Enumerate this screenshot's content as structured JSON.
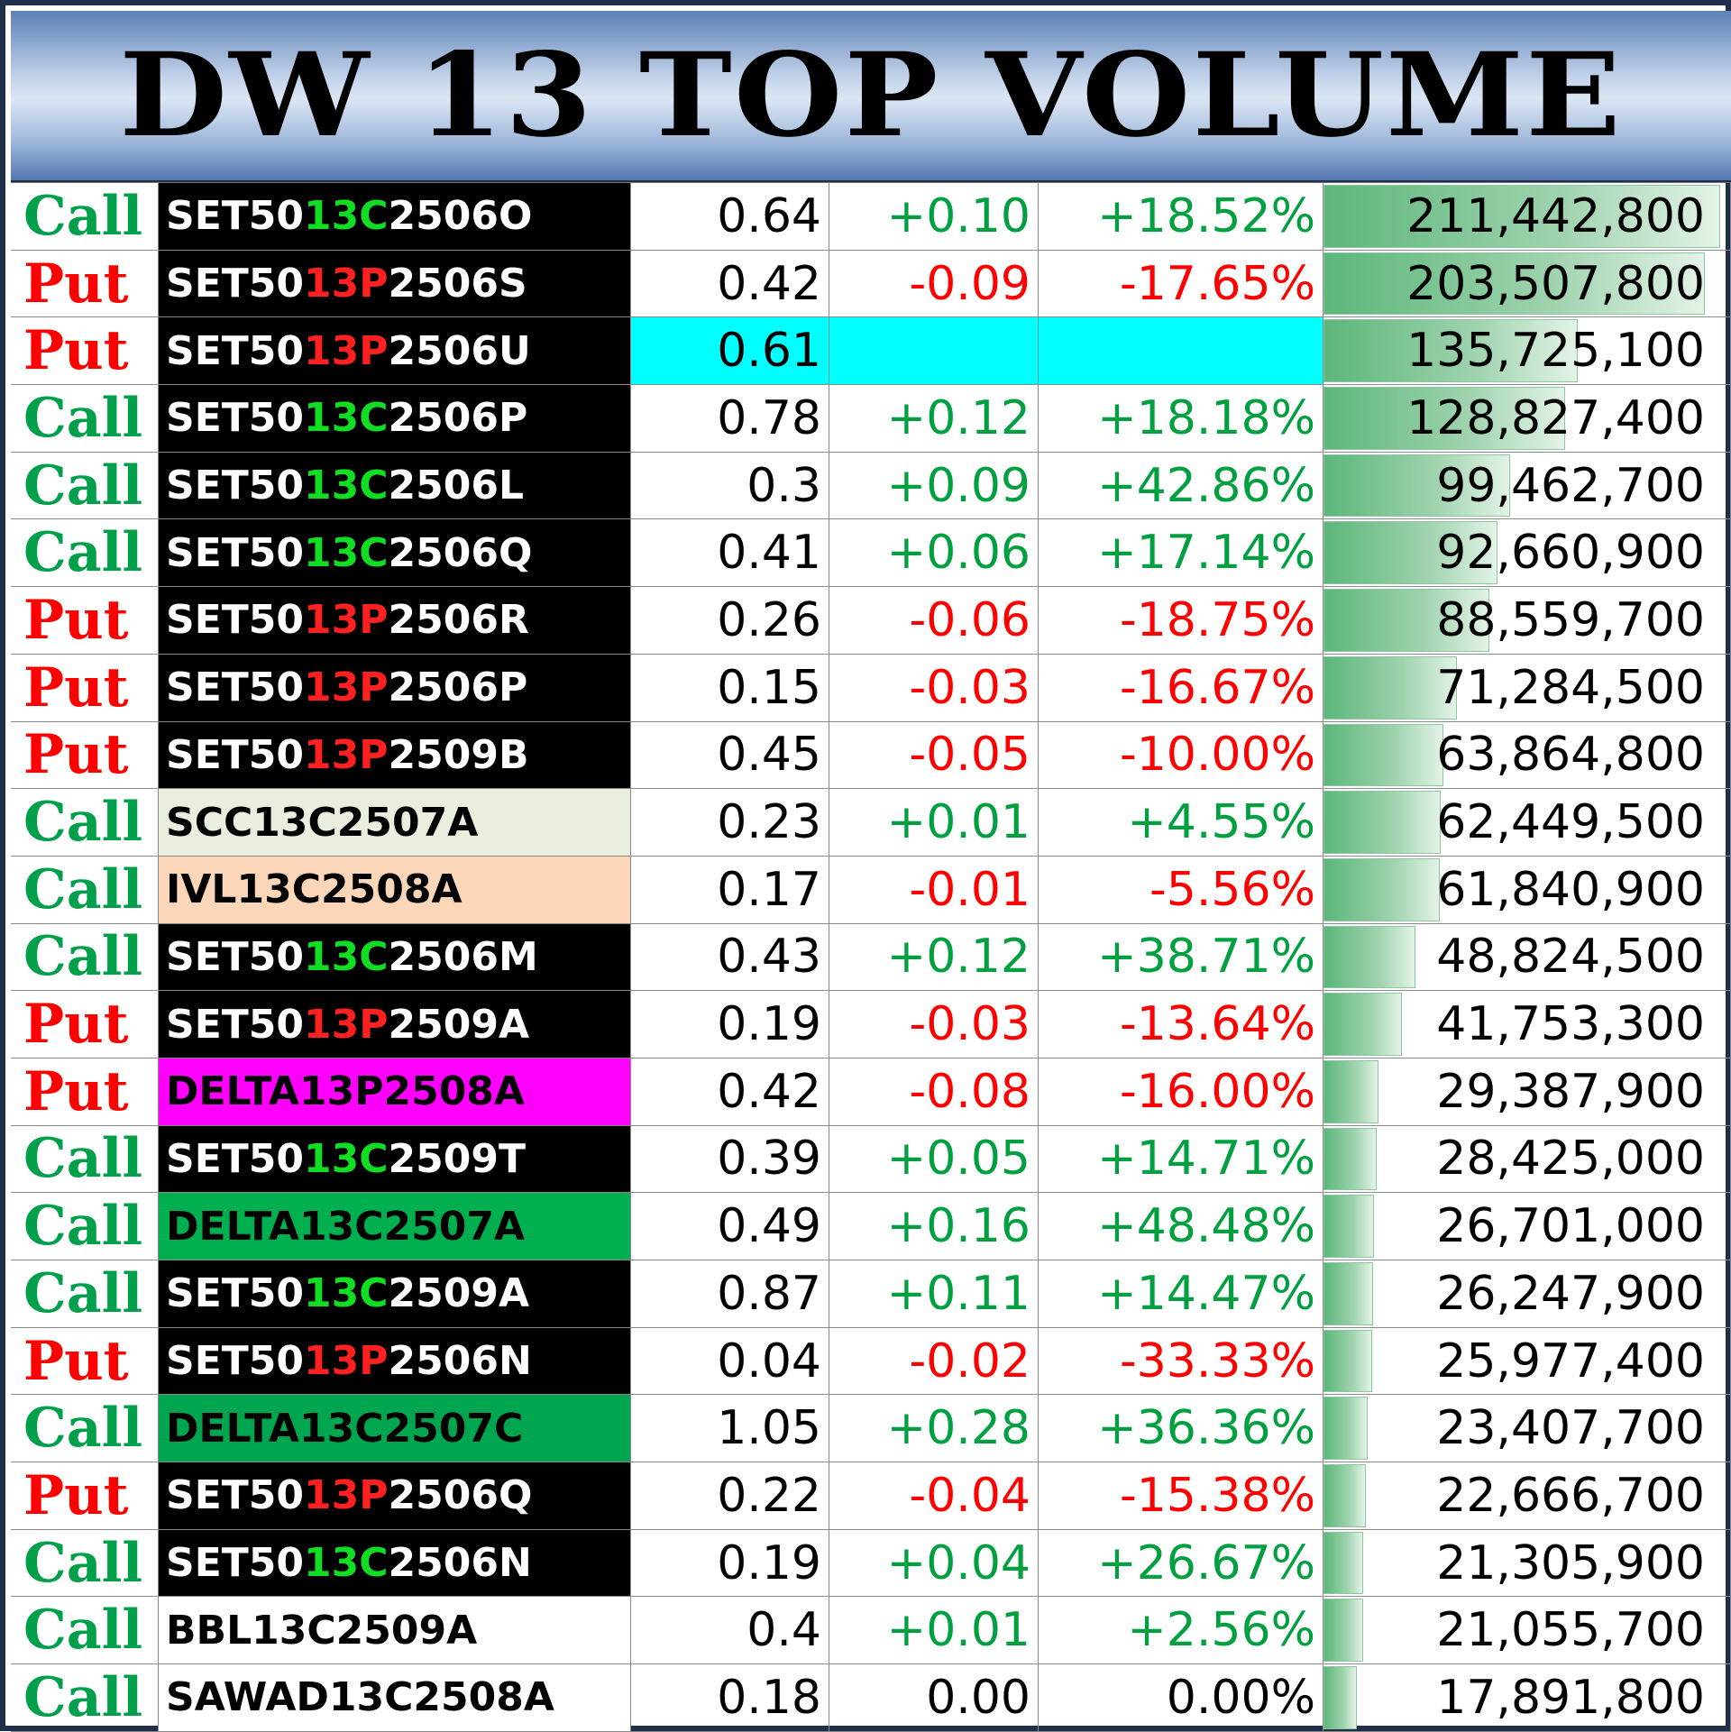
{
  "title": "DW 13 TOP VOLUME",
  "max_volume": 211442800,
  "colors": {
    "call": "#00a04a",
    "put": "#ff0000",
    "positive": "#00a040",
    "negative": "#ff0000",
    "highlight": "#00ffff"
  },
  "rows": [
    {
      "type": "Call",
      "name_pre": "SET50",
      "name_mid": "13C",
      "name_post": "2506O",
      "name_bg": "#000000",
      "name_fg": "#ffffff",
      "price": "0.64",
      "change": "+0.10",
      "percent": "+18.52%",
      "volume": "211,442,800",
      "vol": 211442800,
      "dir": "pos"
    },
    {
      "type": "Put",
      "name_pre": "SET50",
      "name_mid": "13P",
      "name_post": "2506S",
      "name_bg": "#000000",
      "name_fg": "#ffffff",
      "price": "0.42",
      "change": "-0.09",
      "percent": "-17.65%",
      "volume": "203,507,800",
      "vol": 203507800,
      "dir": "neg"
    },
    {
      "type": "Put",
      "name_pre": "SET50",
      "name_mid": "13P",
      "name_post": "2506U",
      "name_bg": "#000000",
      "name_fg": "#ffffff",
      "price": "0.61",
      "change": "",
      "percent": "",
      "volume": "135,725,100",
      "vol": 135725100,
      "dir": "none",
      "highlight": true
    },
    {
      "type": "Call",
      "name_pre": "SET50",
      "name_mid": "13C",
      "name_post": "2506P",
      "name_bg": "#000000",
      "name_fg": "#ffffff",
      "price": "0.78",
      "change": "+0.12",
      "percent": "+18.18%",
      "volume": "128,827,400",
      "vol": 128827400,
      "dir": "pos"
    },
    {
      "type": "Call",
      "name_pre": "SET50",
      "name_mid": "13C",
      "name_post": "2506L",
      "name_bg": "#000000",
      "name_fg": "#ffffff",
      "price": "0.3",
      "change": "+0.09",
      "percent": "+42.86%",
      "volume": "99,462,700",
      "vol": 99462700,
      "dir": "pos"
    },
    {
      "type": "Call",
      "name_pre": "SET50",
      "name_mid": "13C",
      "name_post": "2506Q",
      "name_bg": "#000000",
      "name_fg": "#ffffff",
      "price": "0.41",
      "change": "+0.06",
      "percent": "+17.14%",
      "volume": "92,660,900",
      "vol": 92660900,
      "dir": "pos"
    },
    {
      "type": "Put",
      "name_pre": "SET50",
      "name_mid": "13P",
      "name_post": "2506R",
      "name_bg": "#000000",
      "name_fg": "#ffffff",
      "price": "0.26",
      "change": "-0.06",
      "percent": "-18.75%",
      "volume": "88,559,700",
      "vol": 88559700,
      "dir": "neg"
    },
    {
      "type": "Put",
      "name_pre": "SET50",
      "name_mid": "13P",
      "name_post": "2506P",
      "name_bg": "#000000",
      "name_fg": "#ffffff",
      "price": "0.15",
      "change": "-0.03",
      "percent": "-16.67%",
      "volume": "71,284,500",
      "vol": 71284500,
      "dir": "neg"
    },
    {
      "type": "Put",
      "name_pre": "SET50",
      "name_mid": "13P",
      "name_post": "2509B",
      "name_bg": "#000000",
      "name_fg": "#ffffff",
      "price": "0.45",
      "change": "-0.05",
      "percent": "-10.00%",
      "volume": "63,864,800",
      "vol": 63864800,
      "dir": "neg"
    },
    {
      "type": "Call",
      "name_pre": "SCC13C2507A",
      "name_mid": "",
      "name_post": "",
      "name_bg": "#e9efdf",
      "name_fg": "#000000",
      "price": "0.23",
      "change": "+0.01",
      "percent": "+4.55%",
      "volume": "62,449,500",
      "vol": 62449500,
      "dir": "pos"
    },
    {
      "type": "Call",
      "name_pre": "IVL13C2508A",
      "name_mid": "",
      "name_post": "",
      "name_bg": "#fbd6b8",
      "name_fg": "#000000",
      "price": "0.17",
      "change": "-0.01",
      "percent": "-5.56%",
      "volume": "61,840,900",
      "vol": 61840900,
      "dir": "neg"
    },
    {
      "type": "Call",
      "name_pre": "SET50",
      "name_mid": "13C",
      "name_post": "2506M",
      "name_bg": "#000000",
      "name_fg": "#ffffff",
      "price": "0.43",
      "change": "+0.12",
      "percent": "+38.71%",
      "volume": "48,824,500",
      "vol": 48824500,
      "dir": "pos"
    },
    {
      "type": "Put",
      "name_pre": "SET50",
      "name_mid": "13P",
      "name_post": "2509A",
      "name_bg": "#000000",
      "name_fg": "#ffffff",
      "price": "0.19",
      "change": "-0.03",
      "percent": "-13.64%",
      "volume": "41,753,300",
      "vol": 41753300,
      "dir": "neg"
    },
    {
      "type": "Put",
      "name_pre": "DELTA13P2508A",
      "name_mid": "",
      "name_post": "",
      "name_bg": "#ff00ff",
      "name_fg": "#000000",
      "price": "0.42",
      "change": "-0.08",
      "percent": "-16.00%",
      "volume": "29,387,900",
      "vol": 29387900,
      "dir": "neg"
    },
    {
      "type": "Call",
      "name_pre": "SET50",
      "name_mid": "13C",
      "name_post": "2509T",
      "name_bg": "#000000",
      "name_fg": "#ffffff",
      "price": "0.39",
      "change": "+0.05",
      "percent": "+14.71%",
      "volume": "28,425,000",
      "vol": 28425000,
      "dir": "pos"
    },
    {
      "type": "Call",
      "name_pre": "DELTA13C2507A",
      "name_mid": "",
      "name_post": "",
      "name_bg": "#00b050",
      "name_fg": "#000000",
      "price": "0.49",
      "change": "+0.16",
      "percent": "+48.48%",
      "volume": "26,701,000",
      "vol": 26701000,
      "dir": "pos"
    },
    {
      "type": "Call",
      "name_pre": "SET50",
      "name_mid": "13C",
      "name_post": "2509A",
      "name_bg": "#000000",
      "name_fg": "#ffffff",
      "price": "0.87",
      "change": "+0.11",
      "percent": "+14.47%",
      "volume": "26,247,900",
      "vol": 26247900,
      "dir": "pos"
    },
    {
      "type": "Put",
      "name_pre": "SET50",
      "name_mid": "13P",
      "name_post": "2506N",
      "name_bg": "#000000",
      "name_fg": "#ffffff",
      "price": "0.04",
      "change": "-0.02",
      "percent": "-33.33%",
      "volume": "25,977,400",
      "vol": 25977400,
      "dir": "neg"
    },
    {
      "type": "Call",
      "name_pre": "DELTA13C2507C",
      "name_mid": "",
      "name_post": "",
      "name_bg": "#00a550",
      "name_fg": "#000000",
      "price": "1.05",
      "change": "+0.28",
      "percent": "+36.36%",
      "volume": "23,407,700",
      "vol": 23407700,
      "dir": "pos"
    },
    {
      "type": "Put",
      "name_pre": "SET50",
      "name_mid": "13P",
      "name_post": "2506Q",
      "name_bg": "#000000",
      "name_fg": "#ffffff",
      "price": "0.22",
      "change": "-0.04",
      "percent": "-15.38%",
      "volume": "22,666,700",
      "vol": 22666700,
      "dir": "neg"
    },
    {
      "type": "Call",
      "name_pre": "SET50",
      "name_mid": "13C",
      "name_post": "2506N",
      "name_bg": "#000000",
      "name_fg": "#ffffff",
      "price": "0.19",
      "change": "+0.04",
      "percent": "+26.67%",
      "volume": "21,305,900",
      "vol": 21305900,
      "dir": "pos"
    },
    {
      "type": "Call",
      "name_pre": "BBL13C2509A",
      "name_mid": "",
      "name_post": "",
      "name_bg": "#ffffff",
      "name_fg": "#000000",
      "price": "0.4",
      "change": "+0.01",
      "percent": "+2.56%",
      "volume": "21,055,700",
      "vol": 21055700,
      "dir": "pos"
    },
    {
      "type": "Call",
      "name_pre": "SAWAD13C2508A",
      "name_mid": "",
      "name_post": "",
      "name_bg": "#ffffff",
      "name_fg": "#000000",
      "price": "0.18",
      "change": "0.00",
      "percent": "0.00%",
      "volume": "17,891,800",
      "vol": 17891800,
      "dir": "zero"
    }
  ]
}
